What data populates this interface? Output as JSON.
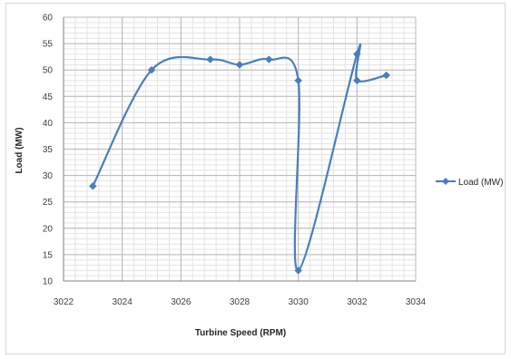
{
  "chart_data": {
    "type": "scatter",
    "line_style": "smooth-lines-with-markers",
    "title": "",
    "xlabel": "Turbine Speed (RPM)",
    "ylabel": "Load (MW)",
    "xlim": [
      3022,
      3034
    ],
    "ylim": [
      10,
      60
    ],
    "x_ticks": [
      3022,
      3024,
      3026,
      3028,
      3030,
      3032,
      3034
    ],
    "y_ticks": [
      10,
      15,
      20,
      25,
      30,
      35,
      40,
      45,
      50,
      55,
      60
    ],
    "grid": {
      "major": true,
      "minor": true
    },
    "legend_position": "right",
    "series": [
      {
        "name": "Load (MW)",
        "color": "#4a7ebb",
        "marker": "diamond",
        "x": [
          3023,
          3025,
          3027,
          3028,
          3029,
          3030,
          3030,
          3032,
          3032,
          3033
        ],
        "y": [
          28,
          50,
          52,
          51,
          52,
          48,
          12,
          53,
          48,
          49
        ]
      }
    ]
  }
}
